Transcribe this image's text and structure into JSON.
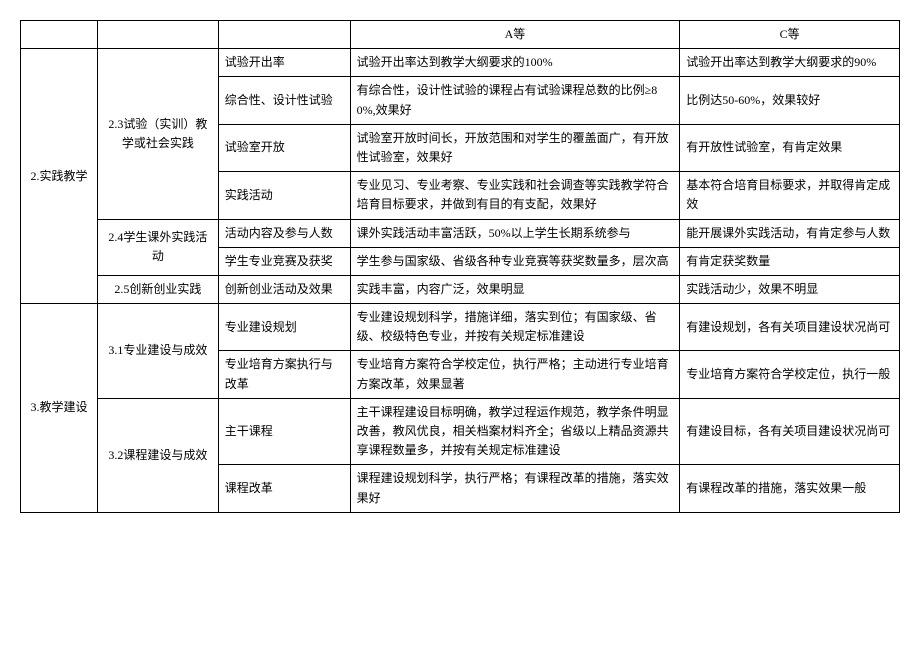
{
  "header": {
    "c4": "A等",
    "c5": "C等"
  },
  "rows": [
    {
      "c3": "试验开出率",
      "c4": "试验开出率达到教学大纲要求的100%",
      "c5": "试验开出率达到教学大纲要求的90%"
    },
    {
      "c3": "综合性、设计性试验",
      "c4": "有综合性，设计性试验的课程占有试验课程总数的比例≥80%,效果好",
      "c5": "比例达50-60%，效果较好"
    },
    {
      "c3": "试验室开放",
      "c4": "试验室开放时间长，开放范围和对学生的覆盖面广，有开放性试验室，效果好",
      "c5": "有开放性试验室，有肯定效果"
    },
    {
      "c3": "实践活动",
      "c4": "专业见习、专业考察、专业实践和社会调查等实践教学符合培育目标要求，并做到有目的有支配，效果好",
      "c5": "基本符合培育目标要求，并取得肯定成效"
    },
    {
      "c3": "活动内容及参与人数",
      "c4": "课外实践活动丰富活跃，50%以上学生长期系统参与",
      "c5": "能开展课外实践活动，有肯定参与人数"
    },
    {
      "c3": "学生专业竞赛及获奖",
      "c4": "学生参与国家级、省级各种专业竞赛等获奖数量多，层次高",
      "c5": "有肯定获奖数量"
    },
    {
      "c3": "创新创业活动及效果",
      "c4": "实践丰富，内容广泛，效果明显",
      "c5": "实践活动少，效果不明显"
    },
    {
      "c3": "专业建设规划",
      "c4": "专业建设规划科学，措施详细，落实到位；有国家级、省级、校级特色专业，并按有关规定标准建设",
      "c5": "有建设规划，各有关项目建设状况尚可"
    },
    {
      "c3": "专业培育方案执行与改革",
      "c4": "专业培育方案符合学校定位，执行严格；主动进行专业培育方案改革，效果显著",
      "c5": "专业培育方案符合学校定位，执行一般"
    },
    {
      "c3": "主干课程",
      "c4": "主干课程建设目标明确，教学过程运作规范，教学条件明显改善，教风优良，相关档案材料齐全；省级以上精品资源共享课程数量多，并按有关规定标准建设",
      "c5": "有建设目标，各有关项目建设状况尚可"
    },
    {
      "c3": "课程改革",
      "c4": "课程建设规划科学，执行严格；有课程改革的措施，落实效果好",
      "c5": "有课程改革的措施，落实效果一般"
    }
  ],
  "groups": {
    "g1": "2.实践教学",
    "g2": "3.教学建设",
    "s23": "2.3试验（实训）教学或社会实践",
    "s24": "2.4学生课外实践活动",
    "s25": "2.5创新创业实践",
    "s31": "3.1专业建设与成效",
    "s32": "3.2课程建设与成效"
  }
}
